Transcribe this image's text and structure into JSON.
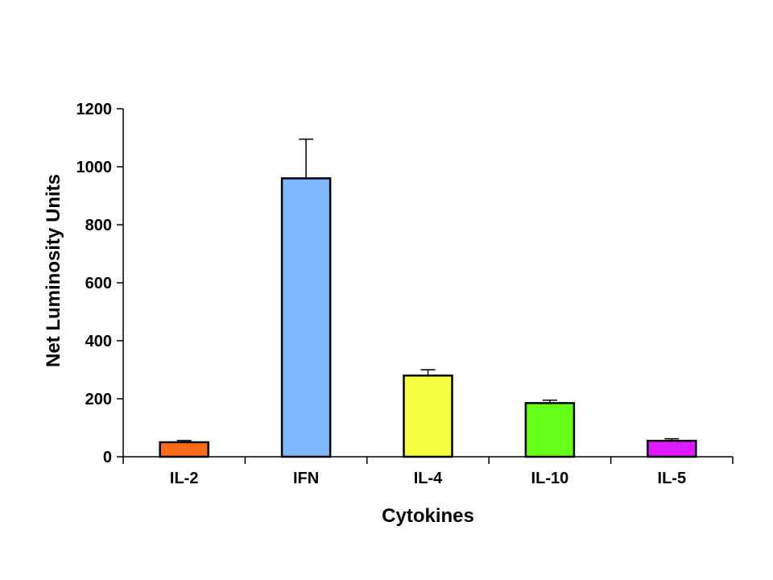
{
  "chart_data": {
    "type": "bar",
    "title": "",
    "xlabel": "Cytokines",
    "ylabel": "Net Luminosity Units",
    "ylim": [
      0,
      1200
    ],
    "yticks": [
      0,
      200,
      400,
      600,
      800,
      1000,
      1200
    ],
    "categories": [
      "IL-2",
      "IFN",
      "IL-4",
      "IL-10",
      "IL-5"
    ],
    "values": [
      50,
      960,
      280,
      185,
      55
    ],
    "errors": [
      6,
      135,
      20,
      10,
      7
    ],
    "colors": [
      "#ff6a1a",
      "#80b8ff",
      "#f8ff40",
      "#66ff1a",
      "#dd1aff"
    ],
    "grid": false,
    "legend": "none"
  }
}
